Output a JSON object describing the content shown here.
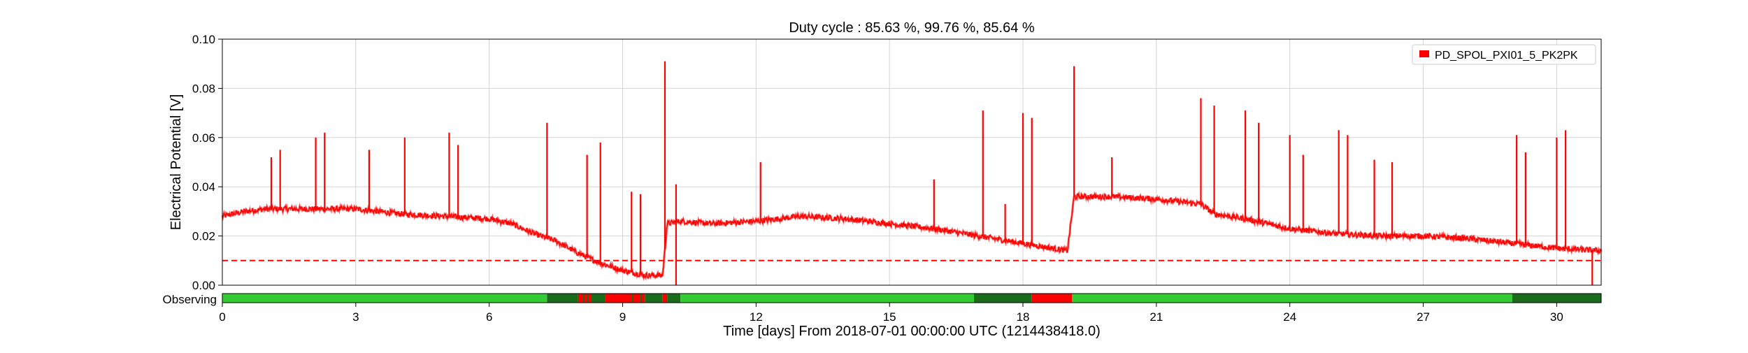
{
  "chart_data": {
    "type": "line",
    "title": "Duty cycle : 85.63 %, 99.76 %, 85.64 %",
    "ylabel": "Electrical Potential [V]",
    "xlabel": "Time [days] From 2018-07-01 00:00:00 UTC (1214438418.0)",
    "xlim": [
      0,
      31
    ],
    "ylim": [
      0,
      0.1
    ],
    "xticks": [
      0,
      3,
      6,
      9,
      12,
      15,
      18,
      21,
      24,
      27,
      30
    ],
    "xtick_labels": [
      "0",
      "3",
      "6",
      "9",
      "12",
      "15",
      "18",
      "21",
      "24",
      "27",
      "30"
    ],
    "yticks": [
      0,
      0.02,
      0.04,
      0.06,
      0.08,
      0.1
    ],
    "ytick_labels": [
      "0.00",
      "0.02",
      "0.04",
      "0.06",
      "0.08",
      "0.10"
    ],
    "grid": true,
    "legend_position": "top-right",
    "series": [
      {
        "name": "PD_SPOL_PXI01_5_PK2PK",
        "color": "#ff0000",
        "baseline": [
          [
            0,
            0.028
          ],
          [
            0.5,
            0.03
          ],
          [
            1,
            0.031
          ],
          [
            2,
            0.031
          ],
          [
            3,
            0.031
          ],
          [
            4,
            0.029
          ],
          [
            5,
            0.028
          ],
          [
            6,
            0.027
          ],
          [
            6.5,
            0.025
          ],
          [
            7,
            0.021
          ],
          [
            7.5,
            0.018
          ],
          [
            8,
            0.013
          ],
          [
            8.5,
            0.009
          ],
          [
            9,
            0.006
          ],
          [
            9.5,
            0.004
          ],
          [
            9.9,
            0.004
          ],
          [
            10.0,
            0.025
          ],
          [
            10.3,
            0.026
          ],
          [
            11,
            0.025
          ],
          [
            12,
            0.026
          ],
          [
            13,
            0.028
          ],
          [
            14,
            0.027
          ],
          [
            15,
            0.025
          ],
          [
            16,
            0.023
          ],
          [
            17,
            0.02
          ],
          [
            18,
            0.017
          ],
          [
            19,
            0.014
          ],
          [
            19.15,
            0.036
          ],
          [
            20,
            0.036
          ],
          [
            21,
            0.035
          ],
          [
            22,
            0.033
          ],
          [
            22.3,
            0.029
          ],
          [
            23,
            0.027
          ],
          [
            24,
            0.023
          ],
          [
            25,
            0.021
          ],
          [
            26,
            0.02
          ],
          [
            27,
            0.02
          ],
          [
            28,
            0.019
          ],
          [
            29,
            0.017
          ],
          [
            30,
            0.015
          ],
          [
            31,
            0.014
          ]
        ],
        "spikes": [
          [
            1.1,
            0.052
          ],
          [
            1.3,
            0.055
          ],
          [
            2.1,
            0.06
          ],
          [
            2.3,
            0.062
          ],
          [
            3.3,
            0.055
          ],
          [
            4.1,
            0.06
          ],
          [
            5.1,
            0.062
          ],
          [
            5.3,
            0.057
          ],
          [
            7.3,
            0.066
          ],
          [
            8.2,
            0.053
          ],
          [
            8.5,
            0.058
          ],
          [
            9.2,
            0.038
          ],
          [
            9.4,
            0.037
          ],
          [
            9.95,
            0.091
          ],
          [
            10.2,
            0.041
          ],
          [
            12.1,
            0.05
          ],
          [
            16.0,
            0.043
          ],
          [
            17.1,
            0.071
          ],
          [
            17.6,
            0.033
          ],
          [
            18.0,
            0.07
          ],
          [
            18.2,
            0.068
          ],
          [
            19.15,
            0.089
          ],
          [
            20.0,
            0.052
          ],
          [
            22.0,
            0.076
          ],
          [
            22.3,
            0.073
          ],
          [
            23.0,
            0.071
          ],
          [
            23.3,
            0.066
          ],
          [
            24.0,
            0.061
          ],
          [
            24.3,
            0.053
          ],
          [
            25.1,
            0.063
          ],
          [
            25.3,
            0.061
          ],
          [
            25.9,
            0.051
          ],
          [
            26.3,
            0.05
          ],
          [
            29.1,
            0.061
          ],
          [
            29.3,
            0.054
          ],
          [
            30.0,
            0.06
          ],
          [
            30.2,
            0.063
          ]
        ],
        "dips": [
          [
            10.2,
            0.0
          ],
          [
            30.8,
            0.0
          ]
        ]
      },
      {
        "name": "",
        "color": "#ff0000",
        "style": "dashed",
        "constant": 0.01
      }
    ],
    "segments_row": {
      "label": "Observing",
      "colors": {
        "active": "#33cc33",
        "known": "#1a6b1a",
        "gap": "#ff0000"
      },
      "segments": [
        {
          "start": 0.0,
          "end": 7.3,
          "state": "active"
        },
        {
          "start": 7.3,
          "end": 8.0,
          "state": "known"
        },
        {
          "start": 8.0,
          "end": 8.3,
          "state": "gap"
        },
        {
          "start": 8.3,
          "end": 8.6,
          "state": "known"
        },
        {
          "start": 8.6,
          "end": 9.5,
          "state": "gap"
        },
        {
          "start": 9.5,
          "end": 9.9,
          "state": "known"
        },
        {
          "start": 9.9,
          "end": 10.0,
          "state": "gap"
        },
        {
          "start": 10.0,
          "end": 10.3,
          "state": "known"
        },
        {
          "start": 10.3,
          "end": 16.9,
          "state": "active"
        },
        {
          "start": 16.9,
          "end": 18.2,
          "state": "known"
        },
        {
          "start": 18.2,
          "end": 19.1,
          "state": "gap"
        },
        {
          "start": 19.1,
          "end": 29.0,
          "state": "active"
        },
        {
          "start": 29.0,
          "end": 31.0,
          "state": "known"
        }
      ]
    }
  }
}
